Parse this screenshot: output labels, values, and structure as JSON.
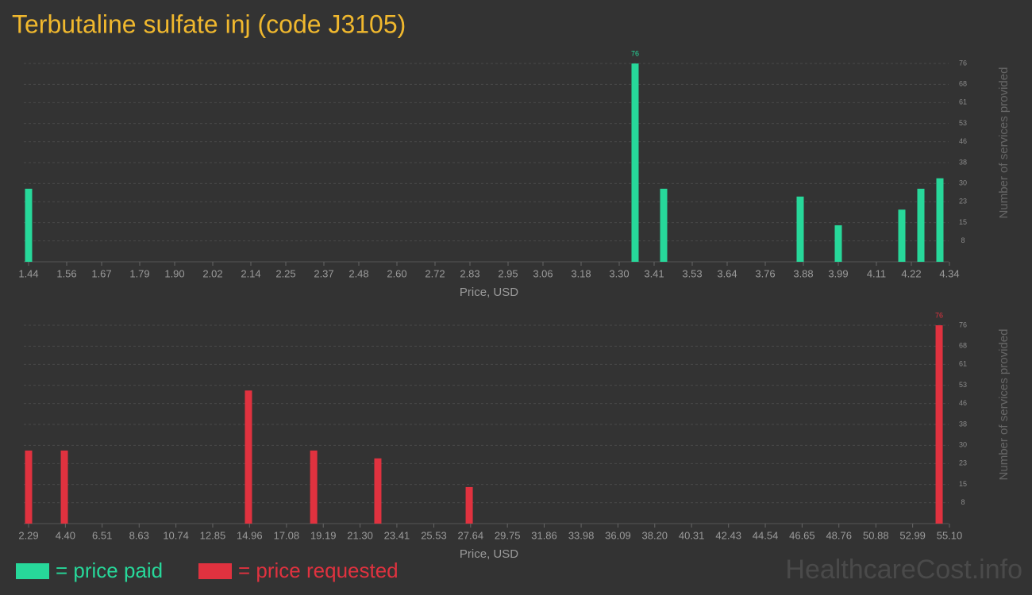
{
  "title": "Terbutaline sulfate inj (code J3105)",
  "watermark": "HealthcareCost.info",
  "chart_data": [
    {
      "type": "bar",
      "x": [
        1.44,
        3.35,
        3.44,
        3.87,
        3.99,
        4.19,
        4.25,
        4.31
      ],
      "series": [
        {
          "name": "= price paid",
          "color": "#27d89a",
          "values": [
            28,
            76,
            28,
            25,
            14,
            20,
            28,
            32
          ]
        }
      ],
      "xlim": [
        1.44,
        4.34
      ],
      "xticks": [
        1.44,
        1.56,
        1.67,
        1.79,
        {
          "value": 1.9,
          "label": "1.90"
        },
        2.02,
        2.14,
        2.25,
        2.37,
        2.48,
        {
          "value": 2.6,
          "label": "2.60"
        },
        2.72,
        2.83,
        2.95,
        3.06,
        3.18,
        {
          "value": 3.3,
          "label": "3.30"
        },
        3.41,
        3.53,
        3.64,
        3.76,
        3.88,
        3.99,
        4.11,
        4.22,
        4.34
      ],
      "ylim": [
        0,
        76
      ],
      "yticks": [
        8,
        15,
        23,
        30,
        38,
        46,
        53,
        61,
        68,
        76
      ],
      "xlabel": "Price, USD",
      "ylabel": "Number of services provided",
      "grid": true
    },
    {
      "type": "bar",
      "x": [
        2.29,
        4.34,
        14.9,
        18.64,
        22.32,
        27.56,
        54.51
      ],
      "series": [
        {
          "name": "= price requested",
          "color": "#e0323f",
          "values": [
            28,
            28,
            51,
            28,
            25,
            14,
            76
          ]
        }
      ],
      "xlim": [
        2.29,
        55.1
      ],
      "xticks": [
        2.29,
        {
          "value": 4.4,
          "label": "4.40"
        },
        6.51,
        8.63,
        10.74,
        12.85,
        14.96,
        17.08,
        19.19,
        {
          "value": 21.3,
          "label": "21.30"
        },
        23.41,
        25.53,
        27.64,
        29.75,
        31.86,
        33.98,
        36.09,
        {
          "value": 38.2,
          "label": "38.20"
        },
        40.31,
        42.43,
        44.54,
        46.65,
        48.76,
        50.88,
        52.99,
        {
          "value": 55.1,
          "label": "55.10"
        }
      ],
      "ylim": [
        0,
        76
      ],
      "yticks": [
        8,
        15,
        23,
        30,
        38,
        46,
        53,
        61,
        68,
        76
      ],
      "xlabel": "Price, USD",
      "ylabel": "Number of services provided",
      "grid": true
    }
  ]
}
